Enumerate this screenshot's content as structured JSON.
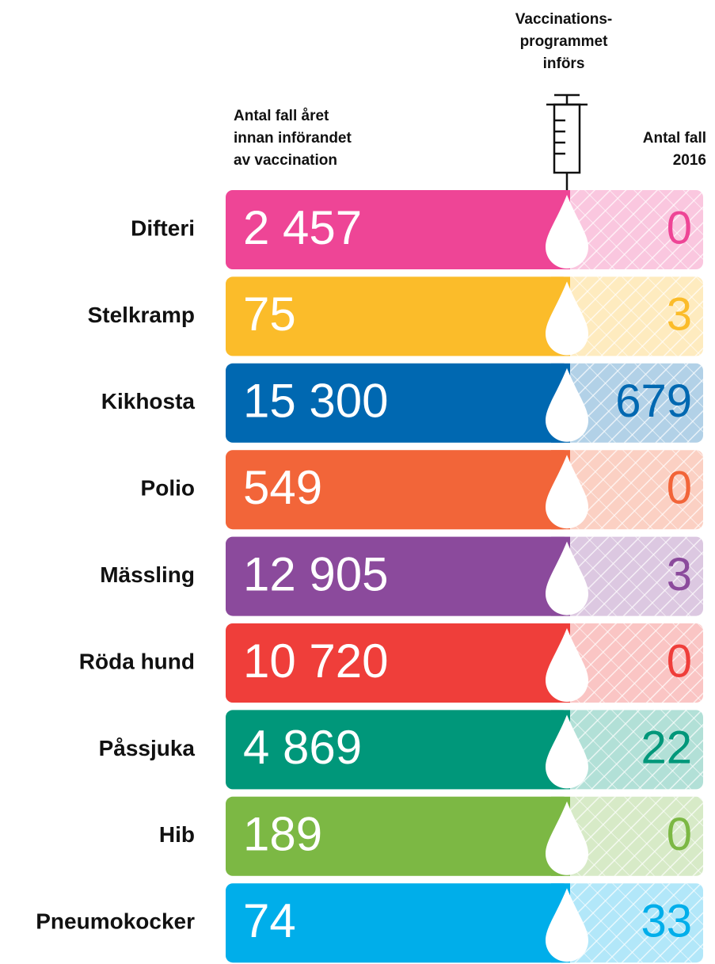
{
  "header": {
    "program_label": [
      "Vaccinations-",
      "programmet",
      "införs"
    ],
    "before_label": [
      "Antal fall året",
      "innan införandet",
      "av vaccination"
    ],
    "after_label": [
      "Antal fall",
      "2016"
    ]
  },
  "rows": [
    {
      "name": "Difteri",
      "before": "2 457",
      "after": "0",
      "color": "#ee4596"
    },
    {
      "name": "Stelkramp",
      "before": "75",
      "after": "3",
      "color": "#fbbc2a"
    },
    {
      "name": "Kikhosta",
      "before": "15 300",
      "after": "679",
      "color": "#0068b1"
    },
    {
      "name": "Polio",
      "before": "549",
      "after": "0",
      "color": "#f26539"
    },
    {
      "name": "Mässling",
      "before": "12 905",
      "after": "3",
      "color": "#8b4a9c"
    },
    {
      "name": "Röda hund",
      "before": "10 720",
      "after": "0",
      "color": "#ef3e3a"
    },
    {
      "name": "Påssjuka",
      "before": "4 869",
      "after": "22",
      "color": "#00977a"
    },
    {
      "name": "Hib",
      "before": "189",
      "after": "0",
      "color": "#7cb844"
    },
    {
      "name": "Pneumokocker",
      "before": "74",
      "after": "33",
      "color": "#00aeea"
    }
  ]
}
